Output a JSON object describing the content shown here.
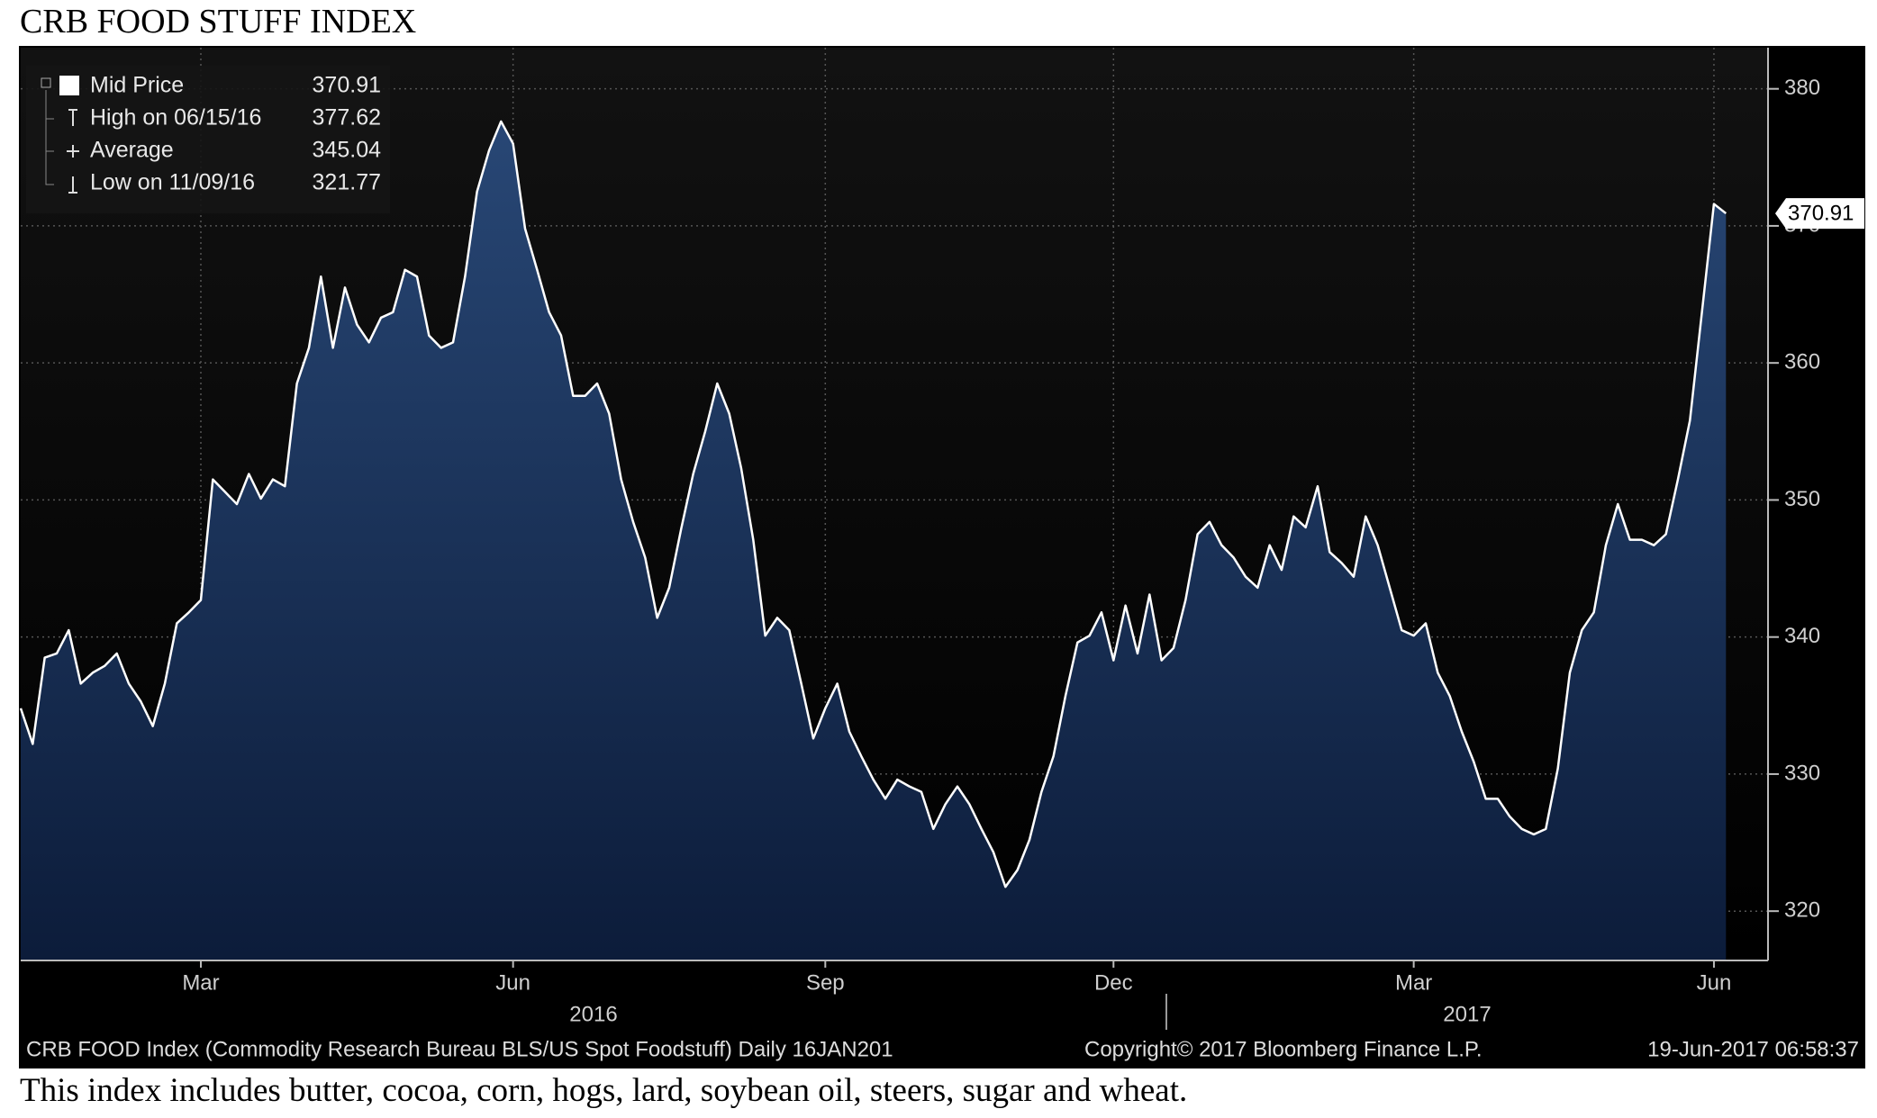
{
  "chart_data": {
    "type": "area",
    "title": "CRB FOOD STUFF INDEX",
    "caption": "This index includes butter, cocoa, corn, hogs, lard, soybean oil, steers, sugar and wheat.",
    "source": "CRB FOOD Index (Commodity Research Bureau BLS/US Spot Foodstuff)  Daily 16JAN201",
    "copyright": "Copyright© 2017 Bloomberg Finance L.P.",
    "timestamp": "19-Jun-2017 06:58:37",
    "x_groups": [
      "2016",
      "2017"
    ],
    "categories": [
      null,
      null,
      null,
      null,
      null,
      null,
      null,
      null,
      null,
      null,
      null,
      null,
      null,
      null,
      null,
      "Mar",
      null,
      null,
      null,
      null,
      null,
      null,
      null,
      null,
      null,
      null,
      null,
      null,
      null,
      null,
      null,
      null,
      null,
      null,
      null,
      null,
      null,
      null,
      null,
      null,
      null,
      "Jun",
      null,
      null,
      null,
      null,
      null,
      null,
      null,
      null,
      null,
      null,
      null,
      null,
      null,
      null,
      null,
      null,
      null,
      null,
      null,
      null,
      null,
      null,
      null,
      null,
      null,
      "Sep",
      null,
      null,
      null,
      null,
      null,
      null,
      null,
      null,
      null,
      null,
      null,
      null,
      null,
      null,
      null,
      null,
      null,
      null,
      null,
      null,
      null,
      null,
      null,
      "Dec",
      null,
      null,
      null,
      null,
      null,
      null,
      null,
      null,
      null,
      null,
      null,
      null,
      null,
      null,
      null,
      null,
      null,
      null,
      null,
      null,
      null,
      null,
      null,
      null,
      "Mar",
      null,
      null,
      null,
      null,
      null,
      null,
      null,
      null,
      null,
      null,
      null,
      null,
      null,
      null,
      null,
      null,
      null,
      null,
      null,
      null,
      null,
      null,
      null,
      null,
      "Jun",
      null
    ],
    "series": [
      {
        "name": "Mid Price",
        "color": "#ffffff",
        "values": [
          334.8,
          332.2,
          338.5,
          338.8,
          340.5,
          336.6,
          337.4,
          337.9,
          338.8,
          336.6,
          335.3,
          333.5,
          336.6,
          341,
          341.8,
          342.7,
          351.5,
          350.6,
          349.7,
          351.9,
          350.1,
          351.5,
          351,
          358.5,
          361.1,
          366.3,
          361.1,
          365.5,
          362.8,
          361.5,
          363.3,
          363.7,
          366.8,
          366.3,
          362,
          361.1,
          361.5,
          366.3,
          372.5,
          375.5,
          377.62,
          376,
          369.8,
          366.8,
          363.7,
          362,
          357.6,
          357.6,
          358.5,
          356.3,
          351.5,
          348.4,
          345.8,
          341.4,
          343.6,
          347.9,
          351.9,
          355,
          358.5,
          356.3,
          352.3,
          347.1,
          340.1,
          341.4,
          340.5,
          336.6,
          332.6,
          334.8,
          336.6,
          333.1,
          331.3,
          329.6,
          328.2,
          329.6,
          329.1,
          328.7,
          326,
          327.8,
          329.1,
          327.8,
          326,
          324.3,
          321.77,
          323,
          325.2,
          328.7,
          331.3,
          335.7,
          339.6,
          340.1,
          341.8,
          338.3,
          342.3,
          338.8,
          343.1,
          338.3,
          339.2,
          342.7,
          347.5,
          348.4,
          346.7,
          345.8,
          344.4,
          343.6,
          346.7,
          344.9,
          348.8,
          348,
          351,
          346.2,
          345.4,
          344.4,
          348.8,
          346.7,
          343.6,
          340.5,
          340.1,
          341,
          337.4,
          335.7,
          333.1,
          330.9,
          328.2,
          328.2,
          326.9,
          326,
          325.6,
          326,
          330.4,
          337.4,
          340.5,
          341.8,
          346.7,
          349.7,
          347.1,
          347.1,
          346.7,
          347.5,
          351.5,
          355.8,
          363.7,
          371.6,
          370.91
        ]
      }
    ],
    "stats": [
      {
        "label": "High on 06/15/16",
        "value": 377.62
      },
      {
        "label": "Average",
        "value": 345.04
      },
      {
        "label": "Low on 11/09/16",
        "value": 321.77
      }
    ],
    "ylim": [
      316.4,
      383
    ],
    "yticks": [
      320,
      330,
      340,
      350,
      360,
      370,
      380
    ],
    "y_axis_side": "right",
    "grid": true
  }
}
